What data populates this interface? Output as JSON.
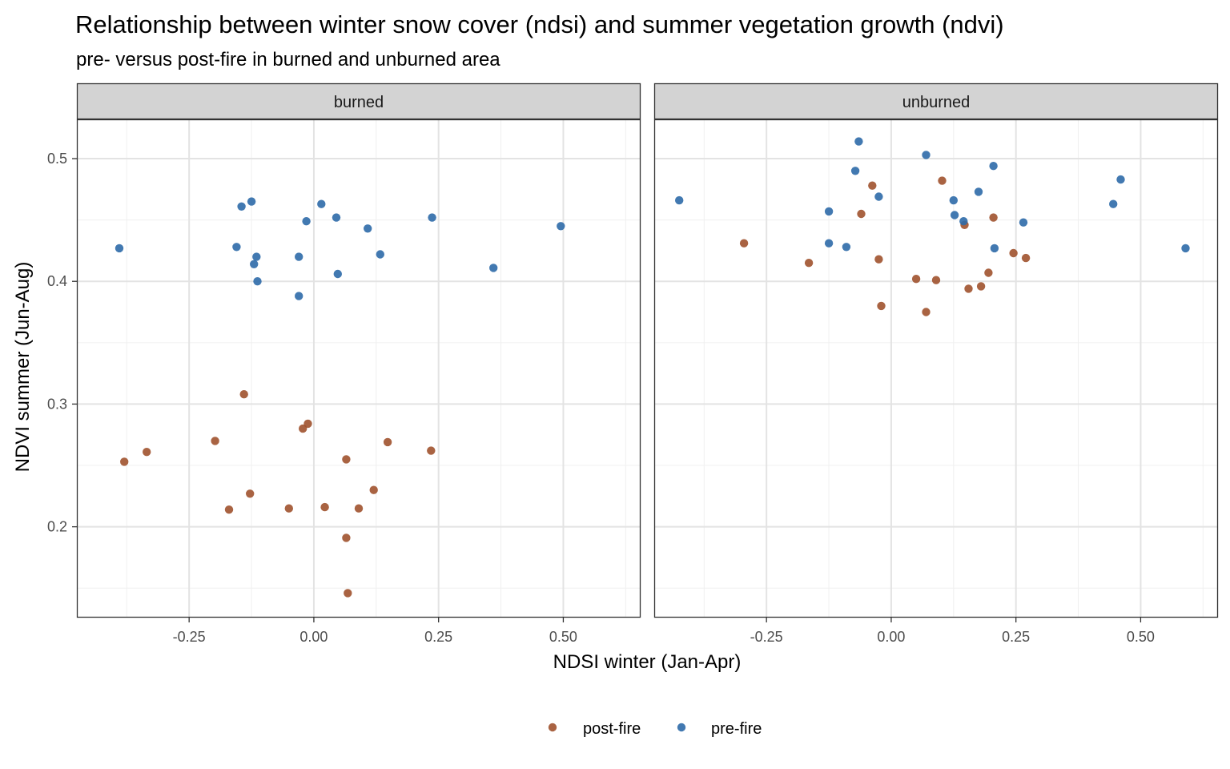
{
  "chart_data": {
    "type": "scatter",
    "title": "Relationship between winter snow cover (ndsi) and summer vegetation growth (ndvi)",
    "subtitle": "pre- versus post-fire in burned and unburned area",
    "xlabel": "NDSI winter (Jan-Apr)",
    "ylabel": "NDVI summer (Jun-Aug)",
    "xlim": [
      -0.475,
      0.655
    ],
    "ylim": [
      0.126,
      0.532
    ],
    "x_ticks": [
      -0.25,
      0.0,
      0.25,
      0.5
    ],
    "x_tick_labels": [
      "-0.25",
      "0.00",
      "0.25",
      "0.50"
    ],
    "y_ticks": [
      0.2,
      0.3,
      0.4,
      0.5
    ],
    "y_tick_labels": [
      "0.2",
      "0.3",
      "0.4",
      "0.5"
    ],
    "grid": true,
    "legend_position": "bottom",
    "legend": [
      {
        "label": "post-fire",
        "color": "#a0522d"
      },
      {
        "label": "pre-fire",
        "color": "#2d6aa8"
      }
    ],
    "panels": [
      {
        "label": "burned",
        "series": [
          {
            "name": "pre-fire",
            "color": "#2d6aa8",
            "points": [
              [
                -0.39,
                0.427
              ],
              [
                -0.155,
                0.428
              ],
              [
                -0.145,
                0.461
              ],
              [
                -0.125,
                0.465
              ],
              [
                -0.12,
                0.414
              ],
              [
                -0.115,
                0.42
              ],
              [
                -0.113,
                0.4
              ],
              [
                -0.03,
                0.42
              ],
              [
                -0.03,
                0.388
              ],
              [
                -0.015,
                0.449
              ],
              [
                0.015,
                0.463
              ],
              [
                0.045,
                0.452
              ],
              [
                0.048,
                0.406
              ],
              [
                0.108,
                0.443
              ],
              [
                0.133,
                0.422
              ],
              [
                0.237,
                0.452
              ],
              [
                0.36,
                0.411
              ],
              [
                0.495,
                0.445
              ]
            ]
          },
          {
            "name": "post-fire",
            "color": "#a0522d",
            "points": [
              [
                -0.38,
                0.253
              ],
              [
                -0.335,
                0.261
              ],
              [
                -0.198,
                0.27
              ],
              [
                -0.17,
                0.214
              ],
              [
                -0.14,
                0.308
              ],
              [
                -0.128,
                0.227
              ],
              [
                -0.05,
                0.215
              ],
              [
                -0.022,
                0.28
              ],
              [
                -0.012,
                0.284
              ],
              [
                0.022,
                0.216
              ],
              [
                0.065,
                0.255
              ],
              [
                0.065,
                0.191
              ],
              [
                0.068,
                0.146
              ],
              [
                0.09,
                0.215
              ],
              [
                0.12,
                0.23
              ],
              [
                0.148,
                0.269
              ],
              [
                0.235,
                0.262
              ]
            ]
          }
        ]
      },
      {
        "label": "unburned",
        "series": [
          {
            "name": "pre-fire",
            "color": "#2d6aa8",
            "points": [
              [
                -0.425,
                0.466
              ],
              [
                -0.125,
                0.457
              ],
              [
                -0.125,
                0.431
              ],
              [
                -0.09,
                0.428
              ],
              [
                -0.072,
                0.49
              ],
              [
                -0.065,
                0.514
              ],
              [
                -0.025,
                0.469
              ],
              [
                0.07,
                0.503
              ],
              [
                0.125,
                0.466
              ],
              [
                0.127,
                0.454
              ],
              [
                0.145,
                0.449
              ],
              [
                0.175,
                0.473
              ],
              [
                0.205,
                0.494
              ],
              [
                0.207,
                0.427
              ],
              [
                0.265,
                0.448
              ],
              [
                0.445,
                0.463
              ],
              [
                0.46,
                0.483
              ],
              [
                0.59,
                0.427
              ]
            ]
          },
          {
            "name": "post-fire",
            "color": "#a0522d",
            "points": [
              [
                -0.295,
                0.431
              ],
              [
                -0.165,
                0.415
              ],
              [
                -0.06,
                0.455
              ],
              [
                -0.038,
                0.478
              ],
              [
                -0.025,
                0.418
              ],
              [
                -0.02,
                0.38
              ],
              [
                0.05,
                0.402
              ],
              [
                0.07,
                0.375
              ],
              [
                0.09,
                0.401
              ],
              [
                0.102,
                0.482
              ],
              [
                0.147,
                0.446
              ],
              [
                0.155,
                0.394
              ],
              [
                0.18,
                0.396
              ],
              [
                0.195,
                0.407
              ],
              [
                0.205,
                0.452
              ],
              [
                0.245,
                0.423
              ],
              [
                0.27,
                0.419
              ]
            ]
          }
        ]
      }
    ]
  }
}
